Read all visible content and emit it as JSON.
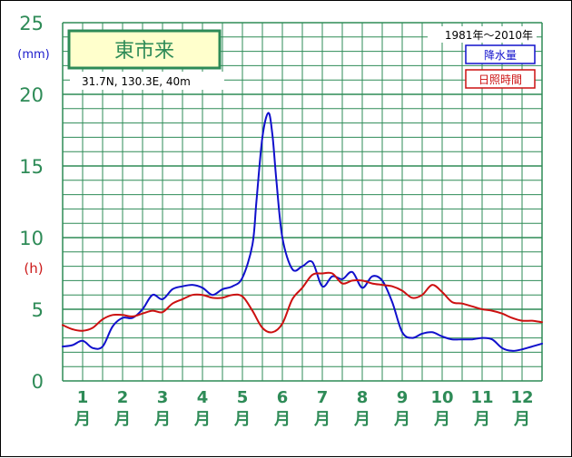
{
  "chart_data": {
    "type": "line",
    "title": "東市来",
    "location": "31.7N, 130.3E, 40m",
    "period": "1981年～2010年",
    "y_ticks": [
      "0",
      "5",
      "10",
      "15",
      "20",
      "25"
    ],
    "unit_left": "(mm)",
    "unit_right": "(h)",
    "month_labels": [
      "1",
      "2",
      "3",
      "4",
      "5",
      "6",
      "7",
      "8",
      "9",
      "10",
      "11",
      "12"
    ],
    "month_suffix": "月",
    "ylim": [
      0,
      25
    ],
    "grid": true,
    "x_range": [
      1,
      13
    ],
    "series": [
      {
        "name": "降水量",
        "color": "#1010cc",
        "x": [
          1.0,
          1.25,
          1.5,
          1.75,
          2.0,
          2.25,
          2.5,
          2.75,
          3.0,
          3.25,
          3.5,
          3.75,
          4.0,
          4.25,
          4.5,
          4.75,
          5.0,
          5.25,
          5.5,
          5.75,
          5.85,
          6.0,
          6.15,
          6.25,
          6.35,
          6.5,
          6.75,
          7.0,
          7.25,
          7.5,
          7.75,
          8.0,
          8.25,
          8.5,
          8.75,
          9.0,
          9.25,
          9.5,
          9.75,
          10.0,
          10.25,
          10.5,
          10.75,
          11.0,
          11.25,
          11.5,
          11.75,
          12.0,
          12.25,
          12.5,
          12.75,
          13.0
        ],
        "values": [
          2.4,
          2.5,
          2.8,
          2.3,
          2.4,
          3.8,
          4.4,
          4.4,
          5.0,
          6.0,
          5.7,
          6.4,
          6.6,
          6.7,
          6.5,
          6.0,
          6.4,
          6.6,
          7.2,
          9.5,
          12.5,
          17.0,
          18.7,
          17.2,
          14.0,
          10.0,
          7.8,
          8.0,
          8.3,
          6.6,
          7.3,
          7.1,
          7.6,
          6.5,
          7.3,
          7.0,
          5.5,
          3.4,
          3.0,
          3.3,
          3.4,
          3.1,
          2.9,
          2.9,
          2.9,
          3.0,
          2.9,
          2.3,
          2.1,
          2.2,
          2.4,
          2.6
        ]
      },
      {
        "name": "日照時間",
        "color": "#cc1010",
        "x": [
          1.0,
          1.25,
          1.5,
          1.75,
          2.0,
          2.25,
          2.5,
          2.75,
          3.0,
          3.25,
          3.5,
          3.75,
          4.0,
          4.25,
          4.5,
          4.75,
          5.0,
          5.25,
          5.5,
          5.75,
          6.0,
          6.25,
          6.5,
          6.75,
          7.0,
          7.25,
          7.5,
          7.75,
          8.0,
          8.25,
          8.5,
          8.75,
          9.0,
          9.25,
          9.5,
          9.75,
          10.0,
          10.25,
          10.5,
          10.75,
          11.0,
          11.25,
          11.5,
          11.75,
          12.0,
          12.25,
          12.5,
          12.75,
          13.0
        ],
        "values": [
          3.9,
          3.6,
          3.5,
          3.7,
          4.3,
          4.6,
          4.6,
          4.5,
          4.7,
          4.9,
          4.8,
          5.4,
          5.7,
          6.0,
          6.0,
          5.8,
          5.8,
          6.0,
          5.9,
          4.9,
          3.7,
          3.4,
          4.0,
          5.7,
          6.5,
          7.4,
          7.5,
          7.5,
          6.8,
          7.0,
          7.0,
          6.8,
          6.7,
          6.6,
          6.3,
          5.8,
          6.0,
          6.7,
          6.2,
          5.5,
          5.4,
          5.2,
          5.0,
          4.9,
          4.7,
          4.4,
          4.2,
          4.2,
          4.1
        ]
      }
    ]
  }
}
